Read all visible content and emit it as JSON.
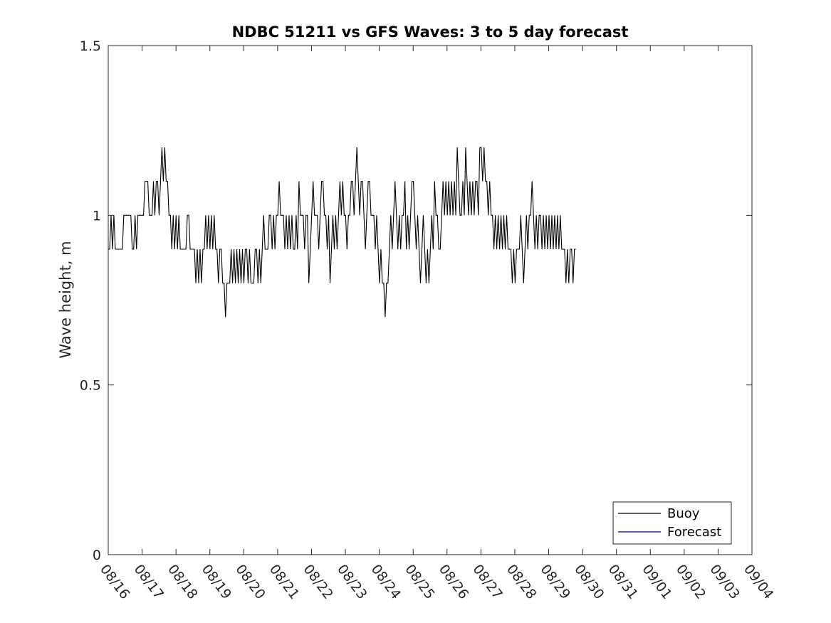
{
  "chart_data": {
    "type": "line",
    "title": "NDBC 51211 vs GFS Waves: 3 to 5 day forecast",
    "xlabel": "",
    "ylabel": "Wave height, m",
    "ylim": [
      0,
      1.5
    ],
    "yticks": [
      0,
      0.5,
      1,
      1.5
    ],
    "ytick_labels": [
      "0",
      "0.5",
      "1",
      "1.5"
    ],
    "xlim": [
      0,
      19
    ],
    "xtick_labels": [
      "08/16",
      "08/17",
      "08/18",
      "08/19",
      "08/20",
      "08/21",
      "08/22",
      "08/23",
      "08/24",
      "08/25",
      "08/26",
      "08/27",
      "08/28",
      "08/29",
      "08/30",
      "08/31",
      "09/01",
      "09/02",
      "09/03",
      "09/04"
    ],
    "legend_position": "bottom-right",
    "legend": [
      {
        "name": "Buoy",
        "color": "#000000"
      },
      {
        "name": "Forecast",
        "color": "#00007f"
      }
    ],
    "series": [
      {
        "name": "Buoy",
        "color": "#000000",
        "x_start": 0,
        "x_step": 0.0417,
        "values": [
          0.9,
          0.9,
          1.0,
          0.9,
          1.0,
          0.9,
          0.9,
          0.9,
          0.9,
          0.9,
          0.9,
          1.0,
          1.0,
          1.0,
          1.0,
          1.0,
          1.0,
          0.9,
          0.9,
          1.0,
          0.9,
          1.0,
          1.0,
          1.0,
          1.0,
          1.0,
          1.1,
          1.1,
          1.1,
          1.0,
          1.0,
          1.0,
          1.1,
          1.0,
          1.1,
          1.1,
          1.0,
          1.1,
          1.2,
          1.1,
          1.2,
          1.1,
          1.1,
          1.0,
          1.0,
          0.9,
          1.0,
          0.9,
          1.0,
          0.9,
          1.0,
          0.9,
          0.9,
          0.9,
          0.9,
          0.9,
          1.0,
          1.0,
          0.9,
          0.9,
          0.9,
          0.9,
          0.8,
          0.9,
          0.8,
          0.9,
          0.8,
          0.9,
          0.9,
          1.0,
          0.9,
          1.0,
          0.9,
          1.0,
          0.9,
          1.0,
          0.9,
          0.9,
          0.8,
          0.9,
          0.9,
          0.8,
          0.8,
          0.7,
          0.8,
          0.8,
          0.8,
          0.9,
          0.8,
          0.9,
          0.8,
          0.9,
          0.8,
          0.9,
          0.8,
          0.9,
          0.8,
          0.9,
          0.9,
          0.8,
          0.9,
          0.8,
          0.8,
          0.8,
          0.9,
          0.9,
          0.8,
          0.9,
          0.8,
          0.9,
          1.0,
          0.9,
          0.9,
          0.9,
          1.0,
          1.0,
          0.9,
          1.0,
          0.9,
          1.0,
          1.0,
          1.1,
          1.0,
          1.0,
          1.0,
          0.9,
          1.0,
          0.9,
          1.0,
          0.9,
          1.0,
          0.9,
          0.9,
          1.0,
          0.9,
          1.1,
          1.0,
          1.0,
          1.0,
          0.9,
          1.0,
          1.0,
          0.8,
          0.9,
          1.0,
          1.1,
          1.0,
          1.0,
          1.0,
          0.9,
          1.0,
          1.1,
          1.1,
          1.0,
          1.0,
          0.9,
          1.0,
          0.8,
          0.9,
          1.0,
          0.9,
          1.0,
          0.9,
          1.0,
          1.1,
          1.0,
          1.1,
          1.0,
          1.0,
          0.9,
          1.0,
          1.0,
          1.1,
          1.1,
          1.0,
          1.1,
          1.2,
          1.1,
          1.0,
          1.1,
          1.1,
          1.0,
          0.9,
          1.0,
          1.1,
          1.1,
          1.0,
          1.0,
          1.0,
          0.9,
          1.0,
          0.9,
          0.8,
          0.9,
          0.8,
          0.8,
          0.7,
          0.8,
          0.8,
          0.9,
          1.0,
          0.9,
          1.0,
          1.1,
          1.0,
          0.9,
          1.0,
          0.9,
          1.0,
          1.0,
          1.1,
          0.9,
          1.0,
          0.9,
          1.0,
          1.1,
          1.1,
          1.0,
          0.9,
          1.0,
          0.9,
          0.8,
          0.9,
          1.0,
          0.9,
          0.8,
          0.9,
          0.8,
          0.9,
          1.0,
          0.9,
          1.1,
          1.0,
          1.0,
          0.9,
          0.9,
          1.0,
          1.1,
          1.0,
          1.1,
          1.0,
          1.1,
          1.0,
          1.1,
          1.0,
          1.1,
          1.0,
          1.2,
          1.1,
          1.0,
          1.0,
          1.1,
          1.0,
          1.2,
          1.1,
          1.0,
          1.1,
          1.0,
          1.1,
          1.0,
          1.1,
          1.1,
          1.0,
          1.2,
          1.2,
          1.1,
          1.2,
          1.1,
          1.1,
          1.0,
          1.1,
          1.0,
          1.0,
          0.9,
          1.0,
          0.9,
          1.0,
          0.9,
          1.0,
          0.9,
          1.0,
          0.9,
          1.0,
          0.9,
          0.9,
          0.9,
          0.8,
          0.9,
          0.8,
          0.9,
          0.9,
          0.9,
          1.0,
          0.9,
          0.8,
          0.9,
          1.0,
          0.9,
          1.0,
          1.0,
          1.1,
          1.0,
          0.9,
          1.0,
          0.9,
          1.0,
          1.0,
          0.9,
          1.0,
          0.9,
          1.0,
          0.9,
          1.0,
          0.9,
          1.0,
          0.9,
          1.0,
          0.9,
          1.0,
          0.9,
          1.0,
          0.9,
          0.9,
          0.9,
          0.8,
          0.9,
          0.8,
          0.9,
          0.9,
          0.8,
          0.9,
          0.9
        ]
      },
      {
        "name": "Forecast",
        "color": "#00007f",
        "values": []
      }
    ]
  }
}
